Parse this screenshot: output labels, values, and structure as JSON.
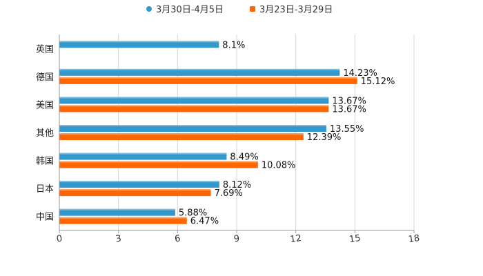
{
  "chart_data": {
    "type": "bar",
    "orientation": "horizontal",
    "title": "",
    "xlabel": "",
    "ylabel": "",
    "xlim": [
      0,
      18
    ],
    "ticks": [
      0,
      3,
      6,
      9,
      12,
      15,
      18
    ],
    "tick_labels": [
      "0",
      "3",
      "6",
      "9",
      "12",
      "15",
      "18"
    ],
    "grid": true,
    "legend_position": "top-center",
    "categories": [
      "英国",
      "德国",
      "美国",
      "其他",
      "韩国",
      "日本",
      "中国"
    ],
    "series": [
      {
        "name": "3月30日-4月5日",
        "color": "#3399cc",
        "values": [
          8.1,
          14.23,
          13.67,
          13.55,
          8.49,
          8.12,
          5.88
        ],
        "labels": [
          "8.1%",
          "14.23%",
          "13.67%",
          "13.55%",
          "8.49%",
          "8.12%",
          "5.88%"
        ]
      },
      {
        "name": "3月23日-3月29日",
        "color": "#ff6600",
        "values": [
          null,
          15.12,
          13.67,
          12.39,
          10.08,
          7.69,
          6.47
        ],
        "labels": [
          "",
          "15.12%",
          "13.67%",
          "12.39%",
          "10.08%",
          "7.69%",
          "6.47%"
        ]
      }
    ]
  }
}
